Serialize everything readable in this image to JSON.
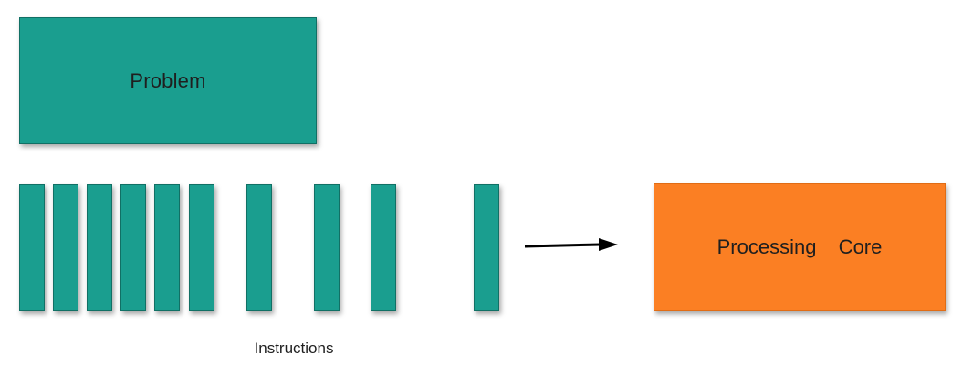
{
  "diagram": {
    "problem_label": "Problem",
    "core_label": "Processing  Core",
    "instructions_label": "Instructions",
    "instruction_count": 10
  },
  "colors": {
    "teal": "#1a9e8f",
    "orange": "#fb7f23",
    "arrow": "#000000"
  }
}
